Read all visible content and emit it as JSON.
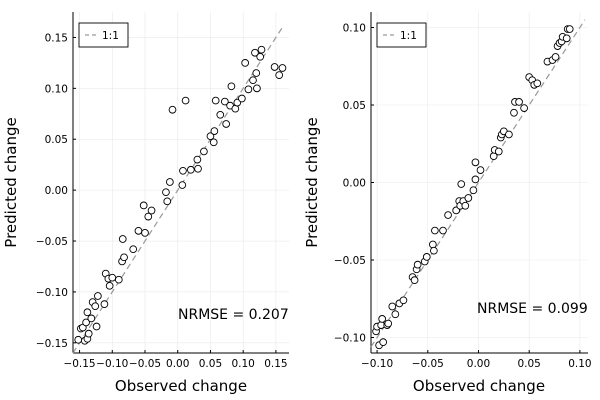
{
  "chart_data": [
    {
      "type": "scatter",
      "xlabel": "Observed change",
      "ylabel": "Predicted change",
      "xlim": [
        -0.16,
        0.17
      ],
      "ylim": [
        -0.16,
        0.175
      ],
      "xticks": [
        -0.15,
        -0.1,
        -0.05,
        0.0,
        0.05,
        0.1,
        0.15
      ],
      "xtick_labels": [
        "−0.15",
        "−0.10",
        "−0.05",
        "0.00",
        "0.05",
        "0.10",
        "0.15"
      ],
      "yticks": [
        -0.15,
        -0.1,
        -0.05,
        0.0,
        0.05,
        0.1,
        0.15
      ],
      "ytick_labels": [
        "−0.15",
        "−0.10",
        "−0.05",
        "0.00",
        "0.05",
        "0.10",
        "0.15"
      ],
      "grid": true,
      "legend": {
        "position": "top-left",
        "label": "1:1"
      },
      "reference_line": {
        "label": "1:1",
        "from": [
          -0.16,
          -0.16
        ],
        "to": [
          0.16,
          0.16
        ],
        "color": "#999999",
        "style": "dashed"
      },
      "annotation": "NRMSE = 0.207",
      "marker": {
        "shape": "circle",
        "fill": "#ffffff",
        "edge": "#000000"
      },
      "points": [
        [
          -0.152,
          -0.147
        ],
        [
          -0.148,
          -0.136
        ],
        [
          -0.145,
          -0.135
        ],
        [
          -0.142,
          -0.148
        ],
        [
          -0.138,
          -0.146
        ],
        [
          -0.14,
          -0.13
        ],
        [
          -0.138,
          -0.12
        ],
        [
          -0.136,
          -0.141
        ],
        [
          -0.132,
          -0.126
        ],
        [
          -0.13,
          -0.11
        ],
        [
          -0.126,
          -0.114
        ],
        [
          -0.124,
          -0.134
        ],
        [
          -0.122,
          -0.104
        ],
        [
          -0.112,
          -0.112
        ],
        [
          -0.11,
          -0.082
        ],
        [
          -0.106,
          -0.087
        ],
        [
          -0.104,
          -0.094
        ],
        [
          -0.1,
          -0.086
        ],
        [
          -0.09,
          -0.088
        ],
        [
          -0.085,
          -0.07
        ],
        [
          -0.084,
          -0.048
        ],
        [
          -0.082,
          -0.066
        ],
        [
          -0.068,
          -0.058
        ],
        [
          -0.06,
          -0.04
        ],
        [
          -0.052,
          -0.015
        ],
        [
          -0.05,
          -0.042
        ],
        [
          -0.045,
          -0.026
        ],
        [
          -0.04,
          -0.02
        ],
        [
          -0.018,
          -0.002
        ],
        [
          -0.016,
          -0.011
        ],
        [
          -0.012,
          0.008
        ],
        [
          -0.008,
          0.079
        ],
        [
          0.007,
          0.005
        ],
        [
          0.008,
          0.019
        ],
        [
          0.012,
          0.088
        ],
        [
          0.02,
          0.02
        ],
        [
          0.03,
          0.03
        ],
        [
          0.031,
          0.021
        ],
        [
          0.04,
          0.038
        ],
        [
          0.05,
          0.053
        ],
        [
          0.055,
          0.047
        ],
        [
          0.056,
          0.058
        ],
        [
          0.058,
          0.088
        ],
        [
          0.065,
          0.074
        ],
        [
          0.072,
          0.087
        ],
        [
          0.074,
          0.065
        ],
        [
          0.08,
          0.083
        ],
        [
          0.082,
          0.102
        ],
        [
          0.088,
          0.08
        ],
        [
          0.091,
          0.086
        ],
        [
          0.098,
          0.09
        ],
        [
          0.103,
          0.125
        ],
        [
          0.108,
          0.099
        ],
        [
          0.115,
          0.108
        ],
        [
          0.118,
          0.135
        ],
        [
          0.12,
          0.115
        ],
        [
          0.121,
          0.1
        ],
        [
          0.126,
          0.131
        ],
        [
          0.128,
          0.138
        ],
        [
          0.148,
          0.121
        ],
        [
          0.155,
          0.113
        ],
        [
          0.16,
          0.12
        ]
      ]
    },
    {
      "type": "scatter",
      "xlabel": "Observed change",
      "ylabel": "Predicted change",
      "xlim": [
        -0.106,
        0.108
      ],
      "ylim": [
        -0.11,
        0.11
      ],
      "xticks": [
        -0.1,
        -0.05,
        0.0,
        0.05,
        0.1
      ],
      "xtick_labels": [
        "−0.10",
        "−0.05",
        "0.00",
        "0.05",
        "0.10"
      ],
      "yticks": [
        -0.1,
        -0.05,
        0.0,
        0.05,
        0.1
      ],
      "ytick_labels": [
        "−0.10",
        "−0.05",
        "0.00",
        "0.05",
        "0.10"
      ],
      "grid": true,
      "legend": {
        "position": "top-left",
        "label": "1:1"
      },
      "reference_line": {
        "label": "1:1",
        "from": [
          -0.106,
          -0.106
        ],
        "to": [
          0.105,
          0.105
        ],
        "color": "#999999",
        "style": "dashed"
      },
      "annotation": "NRMSE = 0.099",
      "marker": {
        "shape": "circle",
        "fill": "#ffffff",
        "edge": "#000000"
      },
      "points": [
        [
          -0.101,
          -0.096
        ],
        [
          -0.1,
          -0.093
        ],
        [
          -0.098,
          -0.105
        ],
        [
          -0.096,
          -0.092
        ],
        [
          -0.095,
          -0.088
        ],
        [
          -0.094,
          -0.103
        ],
        [
          -0.09,
          -0.092
        ],
        [
          -0.089,
          -0.091
        ],
        [
          -0.085,
          -0.08
        ],
        [
          -0.082,
          -0.085
        ],
        [
          -0.078,
          -0.078
        ],
        [
          -0.074,
          -0.076
        ],
        [
          -0.065,
          -0.061
        ],
        [
          -0.063,
          -0.063
        ],
        [
          -0.061,
          -0.056
        ],
        [
          -0.06,
          -0.053
        ],
        [
          -0.053,
          -0.051
        ],
        [
          -0.051,
          -0.048
        ],
        [
          -0.045,
          -0.04
        ],
        [
          -0.044,
          -0.044
        ],
        [
          -0.043,
          -0.031
        ],
        [
          -0.035,
          -0.031
        ],
        [
          -0.03,
          -0.021
        ],
        [
          -0.022,
          -0.018
        ],
        [
          -0.019,
          -0.012
        ],
        [
          -0.018,
          -0.015
        ],
        [
          -0.017,
          -0.001
        ],
        [
          -0.015,
          -0.012
        ],
        [
          -0.013,
          -0.015
        ],
        [
          -0.01,
          -0.01
        ],
        [
          -0.005,
          -0.005
        ],
        [
          -0.003,
          0.002
        ],
        [
          -0.003,
          0.013
        ],
        [
          0.002,
          0.008
        ],
        [
          0.015,
          0.017
        ],
        [
          0.016,
          0.021
        ],
        [
          0.02,
          0.02
        ],
        [
          0.022,
          0.029
        ],
        [
          0.023,
          0.031
        ],
        [
          0.025,
          0.033
        ],
        [
          0.03,
          0.031
        ],
        [
          0.035,
          0.045
        ],
        [
          0.036,
          0.052
        ],
        [
          0.04,
          0.052
        ],
        [
          0.045,
          0.048
        ],
        [
          0.05,
          0.068
        ],
        [
          0.053,
          0.066
        ],
        [
          0.055,
          0.063
        ],
        [
          0.058,
          0.064
        ],
        [
          0.068,
          0.078
        ],
        [
          0.073,
          0.079
        ],
        [
          0.076,
          0.081
        ],
        [
          0.078,
          0.088
        ],
        [
          0.08,
          0.09
        ],
        [
          0.082,
          0.091
        ],
        [
          0.083,
          0.094
        ],
        [
          0.087,
          0.093
        ],
        [
          0.088,
          0.099
        ],
        [
          0.09,
          0.099
        ]
      ]
    }
  ]
}
